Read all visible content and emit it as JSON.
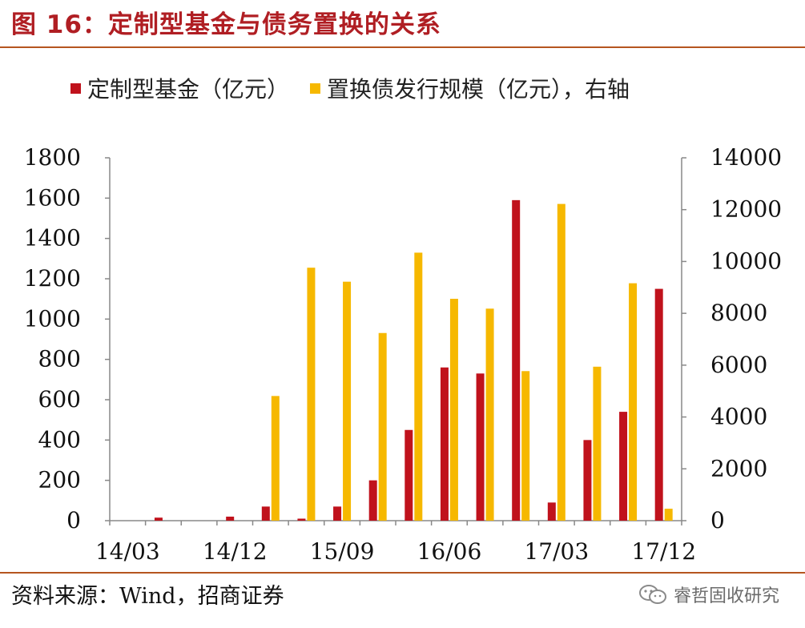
{
  "header": {
    "title": "图 16：定制型基金与债务置换的关系"
  },
  "source": {
    "text": "资料来源：Wind，招商证券"
  },
  "watermark": {
    "text": "睿哲固收研究",
    "icon": "wechat-icon"
  },
  "colors": {
    "fund": "#c0121c",
    "bond": "#f6b800",
    "axis": "#888888",
    "title": "#b01e23",
    "rule": "#b5551f"
  },
  "chart_data": {
    "type": "bar",
    "title": "",
    "grid": false,
    "legend_position": "top",
    "x_tick_labels": [
      "14/03",
      "14/12",
      "15/09",
      "16/06",
      "17/03",
      "17/12"
    ],
    "x_tick_every": 3,
    "categories": [
      "14/03",
      "14/06",
      "14/09",
      "14/12",
      "15/03",
      "15/06",
      "15/09",
      "15/12",
      "16/03",
      "16/06",
      "16/09",
      "16/12",
      "17/03",
      "17/06",
      "17/09",
      "17/12"
    ],
    "y_left": {
      "min": 0,
      "max": 1800,
      "ticks": [
        0,
        200,
        400,
        600,
        800,
        1000,
        1200,
        1400,
        1600,
        1800
      ]
    },
    "y_right": {
      "min": 0,
      "max": 14000,
      "ticks": [
        0,
        2000,
        4000,
        6000,
        8000,
        10000,
        12000,
        14000
      ]
    },
    "series": [
      {
        "name": "定制型基金（亿元）",
        "axis": "left",
        "values": [
          0,
          15,
          0,
          20,
          70,
          10,
          70,
          200,
          450,
          760,
          730,
          1590,
          90,
          400,
          540,
          1150
        ]
      },
      {
        "name": "置换债发行规模（亿元），右轴",
        "axis": "right",
        "values": [
          0,
          0,
          0,
          0,
          4810,
          9760,
          9220,
          7240,
          10340,
          8560,
          8180,
          5770,
          12220,
          5940,
          9160,
          460
        ]
      }
    ]
  }
}
